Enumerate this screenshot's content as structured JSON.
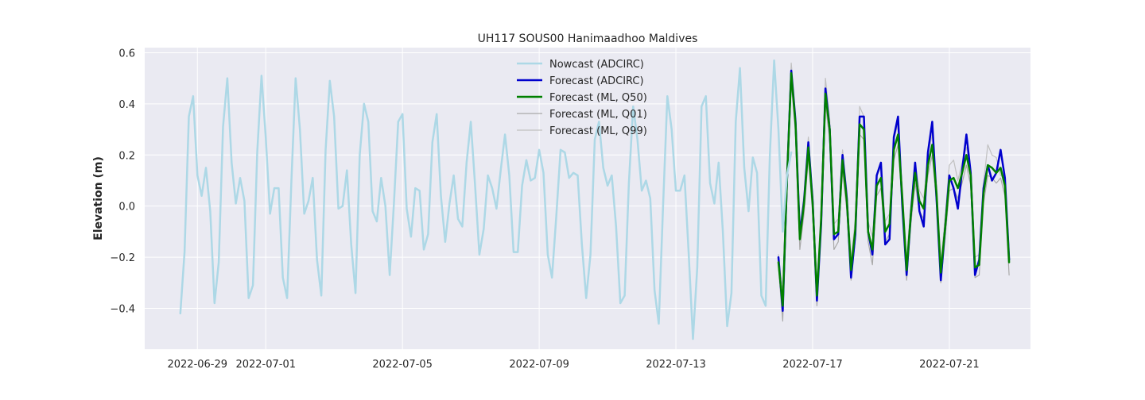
{
  "chart_data": {
    "type": "line",
    "title": "UH117 SOUS00 Hanimaadhoo Maldives",
    "xlabel": "",
    "ylabel": "Elevation (m)",
    "xlim": [
      "2022-06-27T11:00",
      "2022-07-23T09:00"
    ],
    "ylim": [
      -0.56,
      0.62
    ],
    "x_ticks": [
      "2022-06-29",
      "2022-07-01",
      "2022-07-05",
      "2022-07-09",
      "2022-07-13",
      "2022-07-17",
      "2022-07-21"
    ],
    "y_ticks": [
      "−0.4",
      "−0.2",
      "0.0",
      "0.2",
      "0.4",
      "0.6"
    ],
    "y_tick_values": [
      -0.4,
      -0.2,
      0.0,
      0.2,
      0.4,
      0.6
    ],
    "grid": true,
    "legend_position": "top-center",
    "background_color": "#eaeaf2",
    "series": [
      {
        "name": "Nowcast (ADCIRC)",
        "color": "#add8e6",
        "width": 2.5,
        "x_start": "2022-06-28T12:00",
        "step_hours": 3,
        "values": [
          -0.42,
          -0.18,
          0.35,
          0.43,
          0.12,
          0.04,
          0.15,
          -0.02,
          -0.38,
          -0.22,
          0.31,
          0.5,
          0.17,
          0.01,
          0.11,
          0.02,
          -0.36,
          -0.31,
          0.21,
          0.51,
          0.27,
          -0.03,
          0.07,
          0.07,
          -0.28,
          -0.36,
          0.1,
          0.5,
          0.3,
          -0.03,
          0.02,
          0.11,
          -0.21,
          -0.35,
          0.22,
          0.49,
          0.35,
          -0.01,
          0.0,
          0.14,
          -0.15,
          -0.34,
          0.2,
          0.4,
          0.33,
          -0.02,
          -0.06,
          0.11,
          0.0,
          -0.27,
          0.01,
          0.33,
          0.36,
          -0.01,
          -0.12,
          0.07,
          0.06,
          -0.17,
          -0.11,
          0.25,
          0.36,
          0.04,
          -0.14,
          0.01,
          0.12,
          -0.05,
          -0.08,
          0.17,
          0.33,
          0.08,
          -0.19,
          -0.09,
          0.12,
          0.07,
          -0.01,
          0.14,
          0.28,
          0.12,
          -0.18,
          -0.18,
          0.08,
          0.18,
          0.1,
          0.11,
          0.22,
          0.13,
          -0.19,
          -0.28,
          -0.04,
          0.22,
          0.21,
          0.11,
          0.13,
          0.12,
          -0.15,
          -0.36,
          -0.19,
          0.26,
          0.33,
          0.15,
          0.08,
          0.12,
          -0.08,
          -0.38,
          -0.35,
          0.09,
          0.39,
          0.26,
          0.06,
          0.1,
          0.03,
          -0.33,
          -0.46,
          0.0,
          0.43,
          0.3,
          0.06,
          0.06,
          0.12,
          -0.19,
          -0.52,
          -0.24,
          0.39,
          0.43,
          0.09,
          0.01,
          0.17,
          -0.1,
          -0.47,
          -0.34,
          0.33,
          0.54,
          0.15,
          -0.02,
          0.19,
          0.13,
          -0.35,
          -0.39,
          0.2,
          0.57,
          0.3,
          -0.1,
          0.12,
          0.21
        ]
      },
      {
        "name": "Forecast (ADCIRC)",
        "color": "#0000cd",
        "width": 2.5,
        "x_start": "2022-07-16T00:00",
        "step_hours": 3,
        "values": [
          -0.2,
          -0.41,
          0.1,
          0.53,
          0.33,
          -0.11,
          0.02,
          0.25,
          0.02,
          -0.37,
          -0.07,
          0.46,
          0.3,
          -0.13,
          -0.11,
          0.2,
          0.03,
          -0.28,
          -0.11,
          0.35,
          0.35,
          -0.1,
          -0.19,
          0.12,
          0.17,
          -0.15,
          -0.13,
          0.27,
          0.35,
          0.0,
          -0.27,
          -0.03,
          0.17,
          -0.02,
          -0.08,
          0.21,
          0.33,
          0.03,
          -0.29,
          -0.09,
          0.12,
          0.07,
          -0.01,
          0.14,
          0.28,
          0.13,
          -0.27,
          -0.21,
          0.07,
          0.16,
          0.1,
          0.13,
          0.22,
          0.11,
          -0.21
        ]
      },
      {
        "name": "Forecast (ML, Q50)",
        "color": "#008000",
        "width": 2.5,
        "x_start": "2022-07-16T00:00",
        "step_hours": 3,
        "values": [
          -0.22,
          -0.39,
          0.1,
          0.52,
          0.32,
          -0.13,
          0.01,
          0.23,
          0.01,
          -0.35,
          -0.05,
          0.44,
          0.3,
          -0.11,
          -0.1,
          0.18,
          0.02,
          -0.25,
          -0.09,
          0.32,
          0.3,
          -0.1,
          -0.17,
          0.08,
          0.11,
          -0.1,
          -0.07,
          0.22,
          0.28,
          0.03,
          -0.25,
          -0.03,
          0.13,
          0.02,
          -0.01,
          0.16,
          0.24,
          0.05,
          -0.26,
          -0.09,
          0.1,
          0.11,
          0.07,
          0.13,
          0.2,
          0.12,
          -0.24,
          -0.23,
          0.05,
          0.16,
          0.15,
          0.13,
          0.15,
          0.08,
          -0.22
        ]
      },
      {
        "name": "Forecast (ML, Q01)",
        "color": "#a9a9a9",
        "width": 1.2,
        "x_start": "2022-07-16T00:00",
        "step_hours": 3,
        "values": [
          -0.24,
          -0.45,
          0.06,
          0.49,
          0.28,
          -0.17,
          -0.03,
          0.19,
          -0.03,
          -0.39,
          -0.09,
          0.4,
          0.26,
          -0.17,
          -0.14,
          0.14,
          -0.02,
          -0.29,
          -0.13,
          0.28,
          0.26,
          -0.14,
          -0.23,
          0.04,
          0.07,
          -0.14,
          -0.11,
          0.18,
          0.24,
          -0.01,
          -0.29,
          -0.07,
          0.09,
          -0.02,
          -0.05,
          0.12,
          0.2,
          0.01,
          -0.3,
          -0.13,
          0.06,
          0.07,
          0.03,
          0.09,
          0.16,
          0.08,
          -0.28,
          -0.27,
          0.01,
          0.12,
          0.11,
          0.09,
          0.11,
          0.04,
          -0.27
        ]
      },
      {
        "name": "Forecast (ML, Q99)",
        "color": "#c0c0c0",
        "width": 1.2,
        "x_start": "2022-07-16T00:00",
        "step_hours": 3,
        "values": [
          -0.19,
          -0.34,
          0.14,
          0.56,
          0.36,
          -0.09,
          0.05,
          0.27,
          0.05,
          -0.31,
          -0.01,
          0.5,
          0.34,
          -0.07,
          -0.05,
          0.22,
          0.06,
          -0.21,
          -0.05,
          0.39,
          0.35,
          -0.06,
          -0.12,
          0.12,
          0.15,
          -0.06,
          -0.03,
          0.26,
          0.32,
          0.07,
          -0.21,
          0.01,
          0.17,
          0.06,
          0.03,
          0.2,
          0.28,
          0.09,
          -0.22,
          -0.05,
          0.16,
          0.18,
          0.1,
          0.17,
          0.23,
          0.14,
          -0.2,
          -0.19,
          0.09,
          0.24,
          0.2,
          0.19,
          0.12,
          0.11,
          -0.17
        ]
      }
    ]
  }
}
